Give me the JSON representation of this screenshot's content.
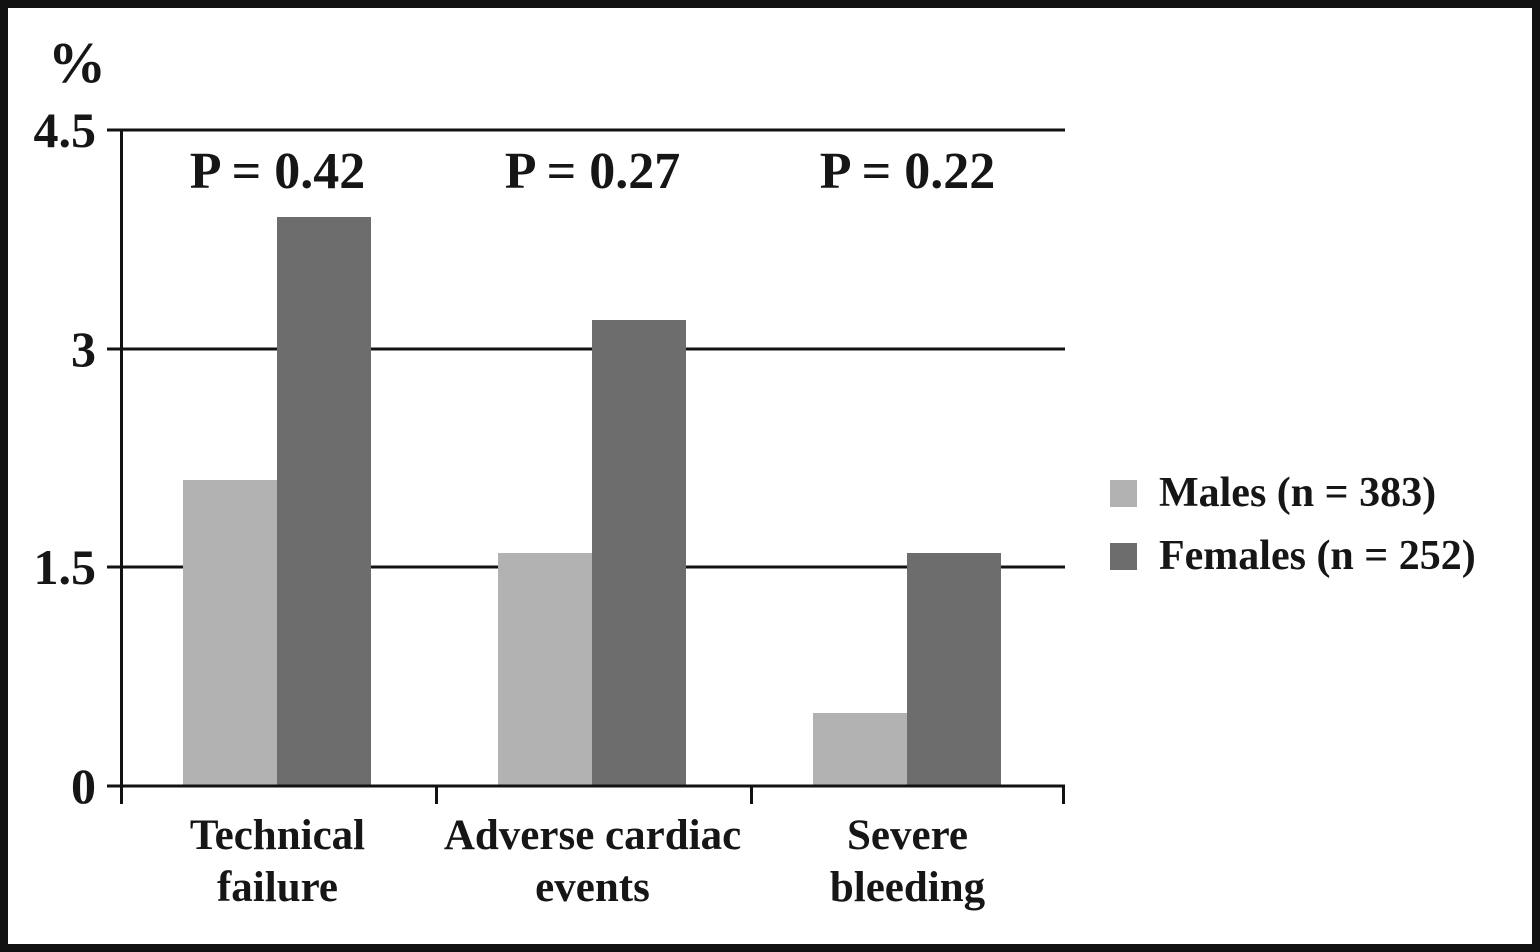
{
  "figure": {
    "ink_color": "#121212",
    "background_color": "#ffffff"
  },
  "chart_data": {
    "type": "bar",
    "title": "",
    "xlabel": "",
    "ylabel": "%",
    "categories": [
      "Technical failure",
      "Adverse cardiac events",
      "Severe bleeding"
    ],
    "series": [
      {
        "name": "Males (n = 383)",
        "color": "#b2b2b2",
        "values": [
          2.1,
          1.6,
          0.5
        ]
      },
      {
        "name": "Females (n = 252)",
        "color": "#6d6d6d",
        "values": [
          3.9,
          3.2,
          1.6
        ]
      }
    ],
    "annotations": [
      "P = 0.42",
      "P = 0.27",
      "P = 0.22"
    ],
    "yticks": [
      0,
      1.5,
      3,
      4.5
    ],
    "ylim": [
      0,
      4.5
    ],
    "grid": true,
    "legend_position": "right"
  }
}
